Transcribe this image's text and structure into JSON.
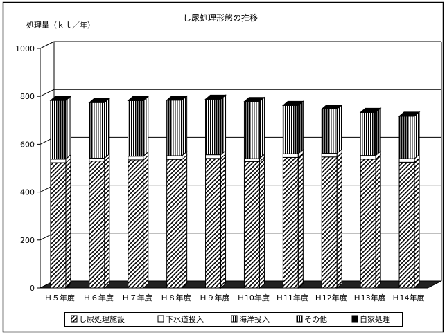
{
  "chart_data": {
    "type": "bar",
    "stacked": true,
    "three_d": true,
    "title": "し尿処理形態の推移",
    "ylabel": "処理量（ｋｌ／年）",
    "ylim": [
      0,
      1000
    ],
    "yticks": [
      0,
      200,
      400,
      600,
      800,
      1000
    ],
    "grid": true,
    "legend_position": "bottom",
    "categories": [
      "Ｈ５年度",
      "Ｈ６年度",
      "Ｈ７年度",
      "Ｈ８年度",
      "Ｈ９年度",
      "Ｈ10年度",
      "Ｈ11年度",
      "Ｈ12年度",
      "Ｈ13年度",
      "Ｈ14年度"
    ],
    "series": [
      {
        "name": "し尿処理施設",
        "pattern": "diagonal-hatch",
        "values": [
          523,
          530,
          535,
          537,
          541,
          528,
          545,
          547,
          538,
          525
        ]
      },
      {
        "name": "下水道投入",
        "pattern": "white",
        "values": [
          15,
          12,
          15,
          15,
          15,
          12,
          15,
          15,
          15,
          15
        ]
      },
      {
        "name": "海洋投入",
        "pattern": "vertical-lines",
        "values": [
          245,
          232,
          232,
          232,
          232,
          238,
          202,
          185,
          180,
          177
        ]
      },
      {
        "name": "その他",
        "pattern": "vertical-lines-light",
        "values": [
          0,
          0,
          0,
          0,
          0,
          0,
          0,
          0,
          0,
          0
        ]
      },
      {
        "name": "自家処理",
        "pattern": "black",
        "values": [
          0,
          0,
          0,
          0,
          0,
          0,
          0,
          0,
          0,
          0
        ]
      }
    ]
  }
}
